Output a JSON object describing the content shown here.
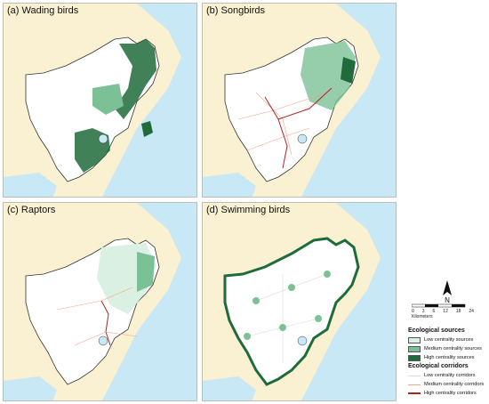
{
  "panels": [
    {
      "id": "a",
      "title": "(a) Wading birds"
    },
    {
      "id": "b",
      "title": "(b) Songbirds"
    },
    {
      "id": "c",
      "title": "(c) Raptors"
    },
    {
      "id": "d",
      "title": "(d) Swimming birds"
    }
  ],
  "compass": {
    "label": "N"
  },
  "scale": {
    "ticks": [
      "0",
      "3",
      "6",
      "12",
      "18",
      "24"
    ],
    "unit": "Kilometers"
  },
  "legend": {
    "sources_title": "Ecological sources",
    "sources": [
      {
        "label": "Low centrality sources",
        "color": "#d9f0e3"
      },
      {
        "label": "Medium centrality sources",
        "color": "#7cc196"
      },
      {
        "label": "High centrality sources",
        "color": "#1f6b3a"
      }
    ],
    "corridors_title": "Ecological corridors",
    "corridors": [
      {
        "label": "Low centrality corridors",
        "color": "#d9d9d9"
      },
      {
        "label": "Medium centrality corridors",
        "color": "#f0a48f"
      },
      {
        "label": "High centrality corridors",
        "color": "#b22222"
      }
    ]
  },
  "colors": {
    "sea": "#c9e8f5",
    "land_outside": "#faf0d2",
    "study_area": "#ffffff"
  }
}
